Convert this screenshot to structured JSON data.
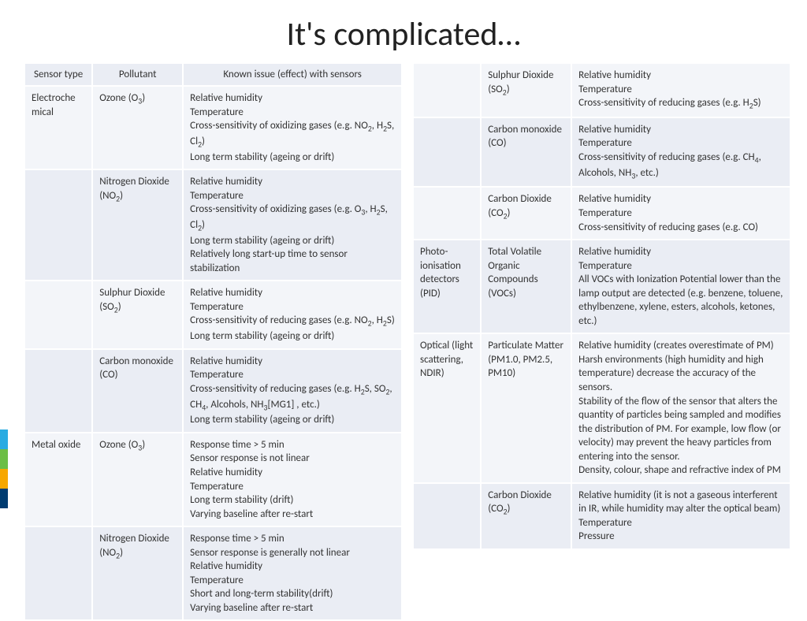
{
  "title": "It's complicated…",
  "columns": [
    "Sensor type",
    "Pollutant",
    "Known issue (effect) with sensors"
  ],
  "stripe_colors": [
    "#29abe2",
    "#6cbe45",
    "#f7a700",
    "#003c71"
  ],
  "left_rows": [
    {
      "sensor": "Electroche mical",
      "pollutant": "Ozone (O<sub>3</sub>)",
      "issues": "Relative humidity<br>Temperature<br>Cross-sensitivity of oxidizing gases (e.g. NO<sub>2</sub>, H<sub>2</sub>S, Cl<sub>2</sub>)<br>Long term stability (ageing or drift)"
    },
    {
      "sensor": "",
      "pollutant": "Nitrogen Dioxide (NO<sub>2</sub>)",
      "issues": "Relative humidity<br>Temperature<br>Cross-sensitivity of oxidizing gases (e.g. O<sub>3</sub>, H<sub>2</sub>S, Cl<sub>2</sub>)<br>Long term stability (ageing or drift)<br>Relatively long start-up time to sensor stabilization"
    },
    {
      "sensor": "",
      "pollutant": "Sulphur Dioxide (SO<sub>2</sub>)",
      "issues": "Relative humidity<br>Temperature<br>Cross-sensitivity of reducing gases (e.g. NO<sub>2</sub>, H<sub>2</sub>S)<br>Long term stability (ageing or drift)"
    },
    {
      "sensor": "",
      "pollutant": "Carbon monoxide (CO)",
      "issues": "Relative humidity<br>Temperature<br>Cross-sensitivity of reducing gases (e.g. H<sub>2</sub>S, SO<sub>2</sub>, CH<sub>4</sub>, Alcohols, NH<sub>3</sub>[MG1] , etc.)<br>Long term stability (ageing or drift)"
    },
    {
      "sensor": "Metal oxide",
      "pollutant": "Ozone (O<sub>3</sub>)",
      "issues": "Response time > 5 min<br>Sensor response is not linear<br>Relative humidity<br>Temperature<br>Long term stability (drift)<br>Varying baseline after re-start"
    },
    {
      "sensor": "",
      "pollutant": "Nitrogen Dioxide (NO<sub>2</sub>)",
      "issues": "Response time > 5 min<br>Sensor response is generally not linear<br>Relative humidity<br>Temperature<br>Short and long-term stability(drift)<br>Varying baseline after re-start"
    }
  ],
  "right_rows": [
    {
      "sensor": "",
      "pollutant": "Sulphur Dioxide (SO<sub>2</sub>)",
      "issues": "Relative humidity<br>Temperature<br>Cross-sensitivity of reducing gases (e.g. H<sub>2</sub>S)"
    },
    {
      "sensor": "",
      "pollutant": "Carbon monoxide (CO)",
      "issues": "Relative humidity<br>Temperature<br>Cross-sensitivity of reducing gases (e.g. CH<sub>4</sub>, Alcohols, NH<sub>3</sub>, etc.)"
    },
    {
      "sensor": "",
      "pollutant": "Carbon Dioxide (CO<sub>2</sub>)",
      "issues": "Relative humidity<br>Temperature<br>Cross-sensitivity of reducing gases (e.g. CO)"
    },
    {
      "sensor": "Photo-ionisation detectors (PID)",
      "pollutant": "Total Volatile Organic Compounds (VOCs)",
      "issues": "Relative humidity<br>Temperature<br>All VOCs with Ionization Potential lower than the lamp output are detected (e.g. benzene, toluene, ethylbenzene, xylene, esters, alcohols, ketones, etc.)"
    },
    {
      "sensor": "Optical (light scattering, NDIR)",
      "pollutant": "Particulate Matter (PM1.0, PM2.5, PM10)",
      "issues": "Relative humidity (creates overestimate of PM)<br>Harsh environments (high humidity and high temperature) decrease the accuracy of the sensors.<br>Stability of the flow of the sensor that alters the quantity of particles being sampled and modifies the distribution of PM. For example, low flow (or velocity) may prevent the heavy particles from entering into the sensor.<br>Density, colour, shape and refractive index of PM"
    },
    {
      "sensor": "",
      "pollutant": "Carbon Dioxide (CO<sub>2</sub>)",
      "issues": "Relative humidity (it is not a gaseous interferent in IR, while humidity may alter the optical beam)<br>Temperature<br>Pressure"
    }
  ]
}
